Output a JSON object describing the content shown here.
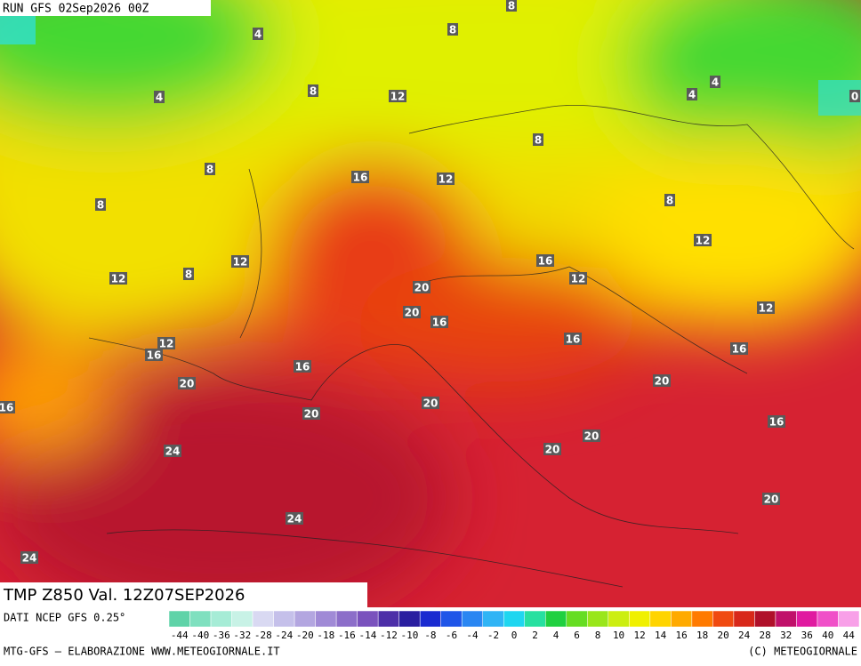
{
  "header": {
    "run": "RUN GFS 02Sep2026 00Z"
  },
  "map": {
    "labels": [
      8,
      4,
      8,
      4,
      8,
      12,
      4,
      4,
      0,
      8,
      8,
      16,
      12,
      8,
      8,
      12,
      16,
      12,
      8,
      12,
      12,
      20,
      12,
      20,
      16,
      16,
      12,
      16,
      16,
      16,
      20,
      20,
      20,
      16,
      20,
      16,
      20,
      20,
      24,
      20,
      24,
      24
    ]
  },
  "caption": "TMP Z850 Val. 12Z07SEP2026",
  "footer": {
    "source": "DATI NCEP GFS 0.25°",
    "credit_left": "MTG-GFS — ELABORAZIONE WWW.METEOGIORNALE.IT",
    "credit_right": "(C) METEOGIORNALE"
  },
  "colorbar": {
    "ticks": [
      -44,
      -40,
      -36,
      -32,
      -28,
      -24,
      -20,
      -18,
      -16,
      -14,
      -12,
      -10,
      -8,
      -6,
      -4,
      -2,
      0,
      2,
      4,
      6,
      8,
      10,
      12,
      14,
      16,
      18,
      20,
      24,
      28,
      32,
      36,
      40,
      44
    ],
    "colors": [
      "#5fd3a8",
      "#7fe0bf",
      "#a6ecd6",
      "#c8f2e6",
      "#d9d9f2",
      "#c5c0ea",
      "#b3a6e0",
      "#a08ad6",
      "#8c6ec9",
      "#7a52bd",
      "#4d2fa8",
      "#2a1fa0",
      "#1a2bd0",
      "#1f55e8",
      "#2a86f2",
      "#30b4f5",
      "#1fd6f0",
      "#27e0a0",
      "#20d040",
      "#66dd22",
      "#99e61a",
      "#ccee11",
      "#f0f000",
      "#ffd400",
      "#ffaa00",
      "#ff7a00",
      "#f04a10",
      "#d8281a",
      "#b0102a",
      "#c0106a",
      "#e01aa0",
      "#f050c8",
      "#f8a0e8"
    ]
  }
}
